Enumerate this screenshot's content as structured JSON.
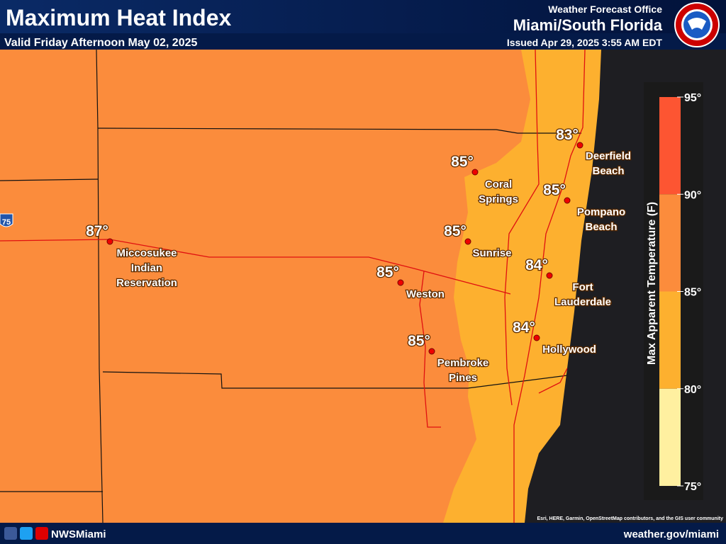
{
  "header": {
    "title": "Maximum Heat Index",
    "valid": "Valid Friday Afternoon May 02, 2025",
    "office": "Weather Forecast Office",
    "region": "Miami/South Florida",
    "issued": "Issued Apr 29, 2025 3:55 AM EDT"
  },
  "shield": "75",
  "cities": [
    {
      "temp": "83°",
      "name": [
        "Deerfield",
        "Beach"
      ]
    },
    {
      "temp": "85°",
      "name": [
        "Coral",
        "Springs"
      ]
    },
    {
      "temp": "85°",
      "name": [
        "Pompano",
        "Beach"
      ]
    },
    {
      "temp": "87°",
      "name": [
        "Miccosukee",
        "Indian",
        "Reservation"
      ]
    },
    {
      "temp": "85°",
      "name": [
        "Sunrise"
      ]
    },
    {
      "temp": "84°",
      "name": [
        "Fort",
        "Lauderdale"
      ]
    },
    {
      "temp": "85°",
      "name": [
        "Weston"
      ]
    },
    {
      "temp": "84°",
      "name": [
        "Hollywood"
      ]
    },
    {
      "temp": "85°",
      "name": [
        "Pembroke",
        "Pines"
      ]
    }
  ],
  "legend": {
    "title": "Max Apparent Temperature (F)",
    "range": [
      75,
      95
    ],
    "ticks": [
      {
        "value": 95,
        "label": "95°"
      },
      {
        "value": 90,
        "label": "90°"
      },
      {
        "value": 85,
        "label": "85°"
      },
      {
        "value": 80,
        "label": "80°"
      },
      {
        "value": 75,
        "label": "75°"
      }
    ],
    "band_colors": [
      "#fd5532",
      "#fc8c3c",
      "#fdb02f",
      "#fff0a0"
    ]
  },
  "attribution": "Esri, HERE, Garmin, OpenStreetMap contributors, and the GIS user community",
  "footer": {
    "social": "NWSMiami",
    "website": "weather.gov/miami"
  }
}
